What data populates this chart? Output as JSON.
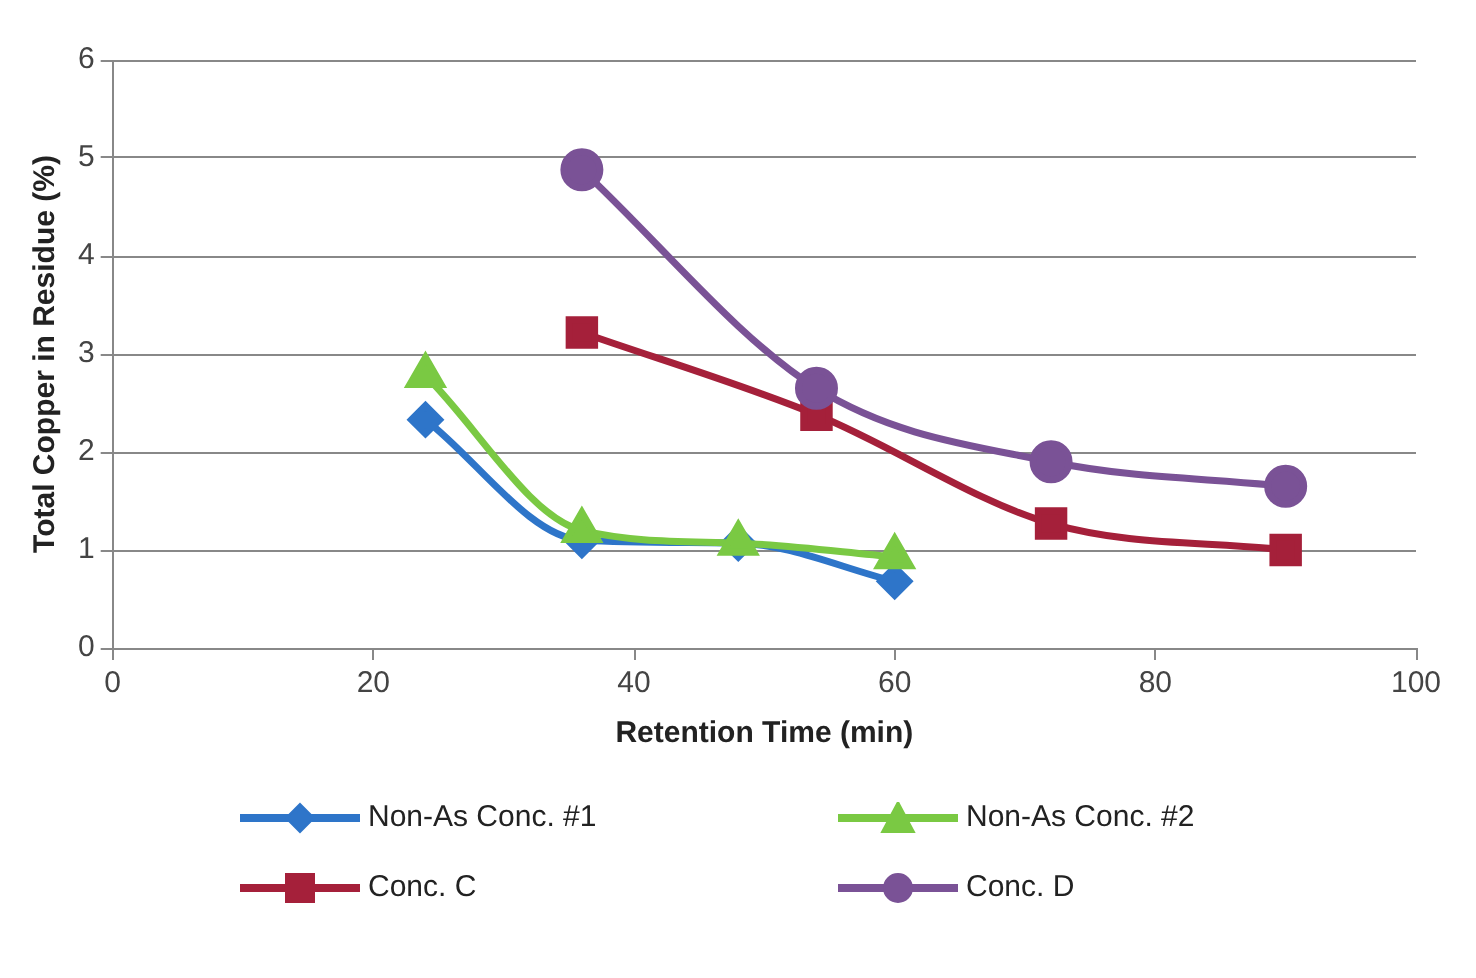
{
  "chart_data": {
    "type": "line",
    "xlabel": "Retention Time (min)",
    "ylabel": "Total Copper in Residue (%)",
    "xlim": [
      0,
      100
    ],
    "xticks": [
      0,
      20,
      40,
      60,
      80,
      100
    ],
    "ylim": [
      0,
      6
    ],
    "yticks": [
      0,
      1,
      2,
      3,
      4,
      5,
      6
    ],
    "grid": "y",
    "legend": "bottom",
    "series": [
      {
        "name": "Non-As Conc. #1",
        "color": "#2e75c9",
        "marker": "diamond",
        "x": [
          24,
          36,
          48,
          60
        ],
        "values": [
          2.33,
          1.1,
          1.07,
          0.68
        ]
      },
      {
        "name": "Non-As Conc. #2",
        "color": "#7ac943",
        "marker": "triangle",
        "x": [
          24,
          36,
          48,
          60
        ],
        "values": [
          2.78,
          1.2,
          1.07,
          0.93
        ]
      },
      {
        "name": "Conc. C",
        "color": "#a5203a",
        "marker": "square",
        "x": [
          36,
          54,
          72,
          90
        ],
        "values": [
          3.22,
          2.38,
          1.27,
          1.0
        ]
      },
      {
        "name": "Conc. D",
        "color": "#7a5296",
        "marker": "circle",
        "x": [
          36,
          54,
          72,
          90
        ],
        "values": [
          4.88,
          2.65,
          1.9,
          1.65
        ]
      }
    ]
  }
}
